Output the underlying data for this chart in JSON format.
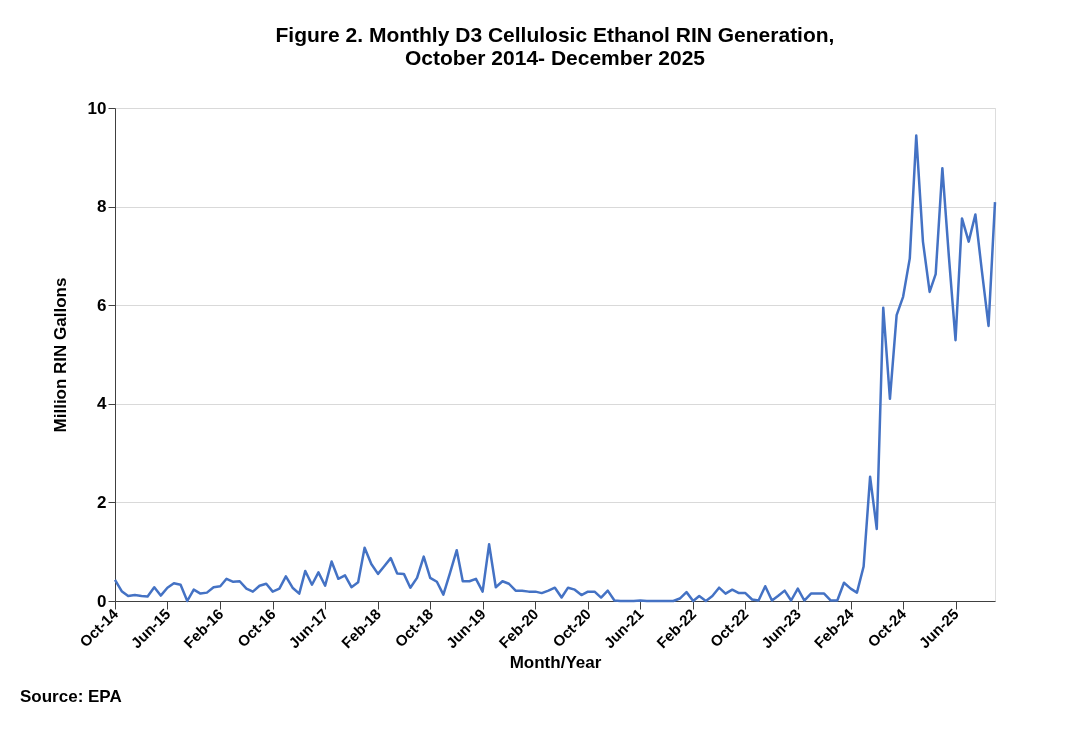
{
  "chart_data": {
    "type": "line",
    "title": [
      "Figure 2. Monthly D3 Cellulosic Ethanol RIN Generation,",
      "October 2014- December 2025"
    ],
    "xlabel": "Month/Year",
    "ylabel": "Million RIN Gallons",
    "annotations": [
      "Source: EPA"
    ],
    "x": [
      "2014-10",
      "2014-11",
      "2014-12",
      "2015-01",
      "2015-02",
      "2015-03",
      "2015-04",
      "2015-05",
      "2015-06",
      "2015-07",
      "2015-08",
      "2015-09",
      "2015-10",
      "2015-11",
      "2015-12",
      "2016-01",
      "2016-02",
      "2016-03",
      "2016-04",
      "2016-05",
      "2016-06",
      "2016-07",
      "2016-08",
      "2016-09",
      "2016-10",
      "2016-11",
      "2016-12",
      "2017-01",
      "2017-02",
      "2017-03",
      "2017-04",
      "2017-05",
      "2017-06",
      "2017-07",
      "2017-08",
      "2017-09",
      "2017-10",
      "2017-11",
      "2017-12",
      "2018-01",
      "2018-02",
      "2018-03",
      "2018-04",
      "2018-05",
      "2018-06",
      "2018-07",
      "2018-08",
      "2018-09",
      "2018-10",
      "2018-11",
      "2018-12",
      "2019-01",
      "2019-02",
      "2019-03",
      "2019-04",
      "2019-05",
      "2019-06",
      "2019-07",
      "2019-08",
      "2019-09",
      "2019-10",
      "2019-11",
      "2019-12",
      "2020-01",
      "2020-02",
      "2020-03",
      "2020-04",
      "2020-05",
      "2020-06",
      "2020-07",
      "2020-08",
      "2020-09",
      "2020-10",
      "2020-11",
      "2020-12",
      "2021-01",
      "2021-02",
      "2021-03",
      "2021-04",
      "2021-05",
      "2021-06",
      "2021-07",
      "2021-08",
      "2021-09",
      "2021-10",
      "2021-11",
      "2021-12",
      "2022-01",
      "2022-02",
      "2022-03",
      "2022-04",
      "2022-05",
      "2022-06",
      "2022-07",
      "2022-08",
      "2022-09",
      "2022-10",
      "2022-11",
      "2022-12",
      "2023-01",
      "2023-02",
      "2023-03",
      "2023-04",
      "2023-05",
      "2023-06",
      "2023-07",
      "2023-08",
      "2023-09",
      "2023-10",
      "2023-11",
      "2023-12",
      "2024-01",
      "2024-02",
      "2024-03",
      "2024-04",
      "2024-05",
      "2024-06",
      "2024-07",
      "2024-08",
      "2024-09",
      "2024-10",
      "2024-11",
      "2024-12",
      "2025-01",
      "2025-02",
      "2025-03",
      "2025-04",
      "2025-05",
      "2025-06",
      "2025-07",
      "2025-08",
      "2025-09",
      "2025-10",
      "2025-11",
      "2025-12"
    ],
    "series": [
      {
        "color": "#4472c4",
        "values": [
          0.43,
          0.2,
          0.1,
          0.12,
          0.1,
          0.09,
          0.28,
          0.11,
          0.27,
          0.36,
          0.33,
          0.0,
          0.23,
          0.15,
          0.17,
          0.28,
          0.3,
          0.45,
          0.39,
          0.4,
          0.25,
          0.19,
          0.31,
          0.35,
          0.19,
          0.25,
          0.5,
          0.27,
          0.15,
          0.61,
          0.33,
          0.58,
          0.31,
          0.8,
          0.45,
          0.52,
          0.28,
          0.38,
          1.08,
          0.75,
          0.55,
          0.7,
          0.87,
          0.56,
          0.55,
          0.27,
          0.47,
          0.9,
          0.47,
          0.39,
          0.13,
          0.57,
          1.03,
          0.4,
          0.4,
          0.45,
          0.19,
          1.15,
          0.28,
          0.4,
          0.35,
          0.21,
          0.21,
          0.19,
          0.19,
          0.16,
          0.21,
          0.27,
          0.07,
          0.27,
          0.23,
          0.12,
          0.19,
          0.19,
          0.07,
          0.21,
          0.01,
          0.0,
          0.0,
          0.0,
          0.01,
          0.0,
          0.0,
          0.0,
          0.0,
          0.0,
          0.05,
          0.18,
          0.0,
          0.1,
          0.0,
          0.1,
          0.27,
          0.15,
          0.23,
          0.16,
          0.16,
          0.03,
          0.01,
          0.3,
          0.01,
          0.1,
          0.21,
          0.01,
          0.25,
          0.01,
          0.15,
          0.15,
          0.15,
          0.01,
          0.01,
          0.37,
          0.25,
          0.17,
          0.7,
          2.52,
          1.46,
          5.95,
          4.1,
          5.8,
          6.17,
          6.95,
          9.44,
          7.29,
          6.27,
          6.63,
          8.78,
          7.0,
          5.29,
          7.76,
          7.29,
          7.84,
          6.7,
          5.58,
          8.09
        ]
      }
    ],
    "xlim": [
      "2014-10",
      "2025-12"
    ],
    "xticks": [
      {
        "value": "2014-10",
        "label": "Oct-14"
      },
      {
        "value": "2015-06",
        "label": "Jun-15"
      },
      {
        "value": "2016-02",
        "label": "Feb-16"
      },
      {
        "value": "2016-10",
        "label": "Oct-16"
      },
      {
        "value": "2017-06",
        "label": "Jun-17"
      },
      {
        "value": "2018-02",
        "label": "Feb-18"
      },
      {
        "value": "2018-10",
        "label": "Oct-18"
      },
      {
        "value": "2019-06",
        "label": "Jun-19"
      },
      {
        "value": "2020-02",
        "label": "Feb-20"
      },
      {
        "value": "2020-10",
        "label": "Oct-20"
      },
      {
        "value": "2021-06",
        "label": "Jun-21"
      },
      {
        "value": "2022-02",
        "label": "Feb-22"
      },
      {
        "value": "2022-10",
        "label": "Oct-22"
      },
      {
        "value": "2023-06",
        "label": "Jun-23"
      },
      {
        "value": "2024-02",
        "label": "Feb-24"
      },
      {
        "value": "2024-10",
        "label": "Oct-24"
      },
      {
        "value": "2025-06",
        "label": "Jun-25"
      }
    ],
    "ylim": [
      0,
      10
    ],
    "yticks": [
      0,
      2,
      4,
      6,
      8,
      10
    ],
    "grid": "y",
    "marker": "none",
    "line_style": "solid"
  }
}
